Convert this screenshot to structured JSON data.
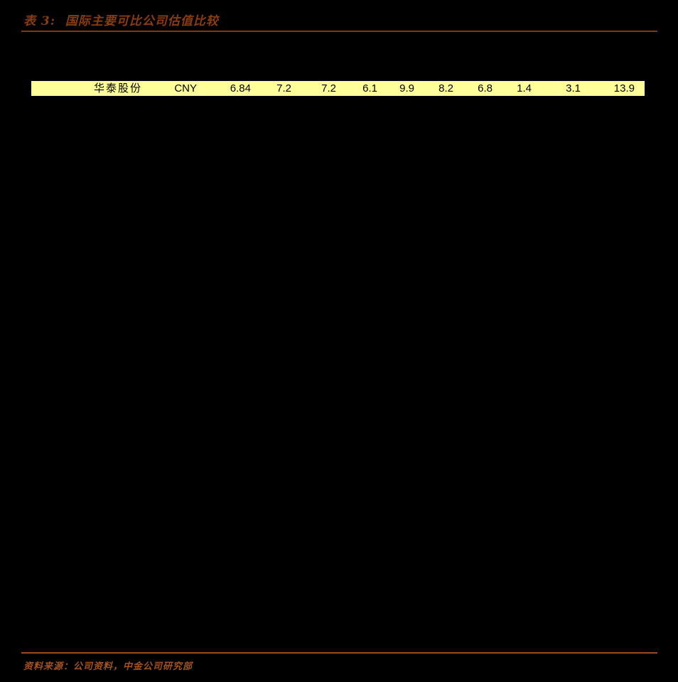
{
  "figure": {
    "title": "表 3:  国际主要可比公司估值比较",
    "source": "资料来源：公司资料，中金公司研究部",
    "colors": {
      "background": "#000000",
      "title_text": "#8C3C0E",
      "top_rule": "#82390F",
      "bottom_rule": "#9A4C18",
      "source_text": "#A4521A",
      "row_highlight": "#FFFF99",
      "row_text": "#000000"
    },
    "table": {
      "highlight_row": {
        "name": "华泰股份",
        "currency": "CNY",
        "values": [
          "6.84",
          "7.2",
          "7.2",
          "6.1",
          "9.9",
          "8.2",
          "6.8",
          "1.4",
          "3.1",
          "13.9"
        ]
      }
    }
  }
}
